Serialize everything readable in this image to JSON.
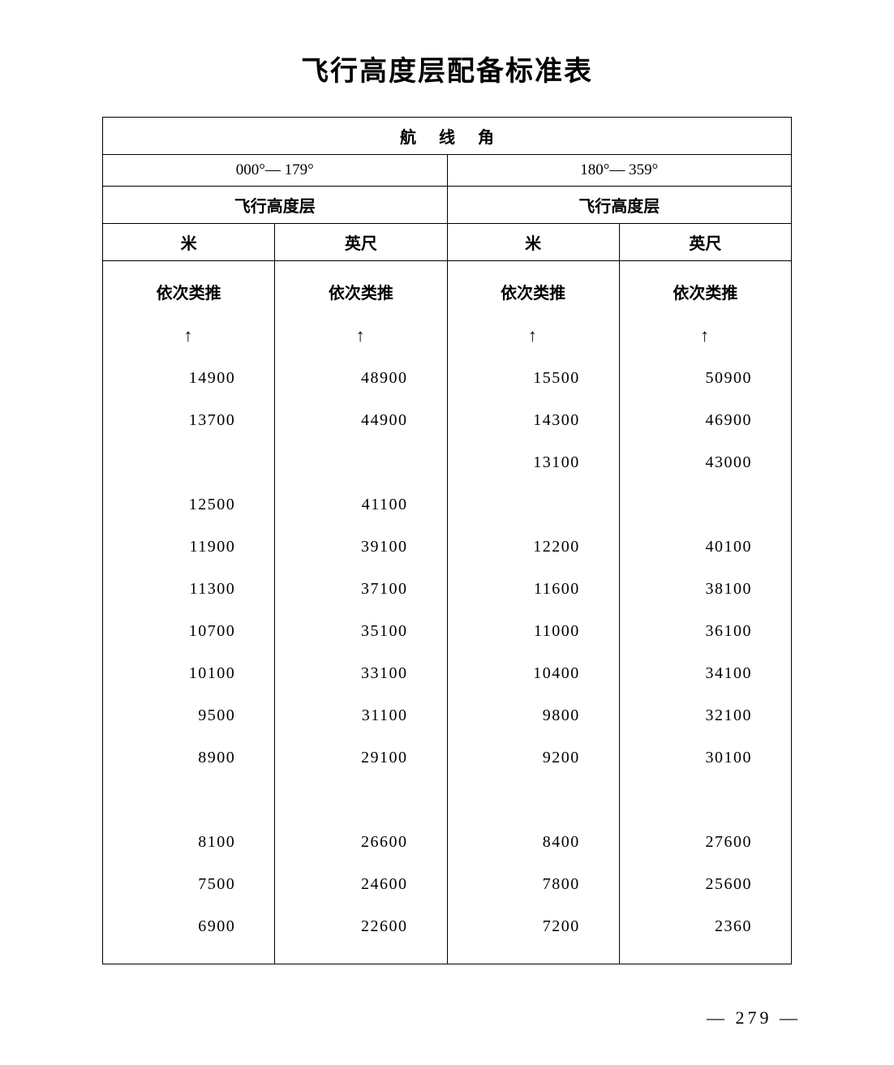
{
  "title": "飞行高度层配备标准表",
  "header": {
    "row1": "航线角",
    "row2_left": "000°— 179°",
    "row2_right": "180°— 359°",
    "row3_left": "飞行高度层",
    "row3_right": "飞行高度层",
    "row4_c1": "米",
    "row4_c2": "英尺",
    "row4_c3": "米",
    "row4_c4": "英尺"
  },
  "common": {
    "etc_label": "依次类推",
    "arrow": "↑"
  },
  "columns": [
    {
      "cells": [
        {
          "type": "bold",
          "key": "etc_label"
        },
        {
          "type": "arrow",
          "key": "arrow"
        },
        {
          "type": "num",
          "val": "14900"
        },
        {
          "type": "num",
          "val": "13700"
        },
        {
          "type": "gap"
        },
        {
          "type": "num",
          "val": "12500"
        },
        {
          "type": "num",
          "val": "11900"
        },
        {
          "type": "num",
          "val": "11300"
        },
        {
          "type": "num",
          "val": "10700"
        },
        {
          "type": "num",
          "val": "10100"
        },
        {
          "type": "num",
          "val": "9500"
        },
        {
          "type": "num",
          "val": "8900"
        },
        {
          "type": "gap"
        },
        {
          "type": "num",
          "val": "8100"
        },
        {
          "type": "num",
          "val": "7500"
        },
        {
          "type": "num",
          "val": "6900"
        }
      ]
    },
    {
      "cells": [
        {
          "type": "bold",
          "key": "etc_label"
        },
        {
          "type": "arrow",
          "key": "arrow"
        },
        {
          "type": "num",
          "val": "48900"
        },
        {
          "type": "num",
          "val": "44900"
        },
        {
          "type": "gap"
        },
        {
          "type": "num",
          "val": "41100"
        },
        {
          "type": "num",
          "val": "39100"
        },
        {
          "type": "num",
          "val": "37100"
        },
        {
          "type": "num",
          "val": "35100"
        },
        {
          "type": "num",
          "val": "33100"
        },
        {
          "type": "num",
          "val": "31100"
        },
        {
          "type": "num",
          "val": "29100"
        },
        {
          "type": "gap"
        },
        {
          "type": "num",
          "val": "26600"
        },
        {
          "type": "num",
          "val": "24600"
        },
        {
          "type": "num",
          "val": "22600"
        }
      ]
    },
    {
      "cells": [
        {
          "type": "bold",
          "key": "etc_label"
        },
        {
          "type": "arrow",
          "key": "arrow"
        },
        {
          "type": "num",
          "val": "15500"
        },
        {
          "type": "num",
          "val": "14300"
        },
        {
          "type": "num",
          "val": "13100"
        },
        {
          "type": "gap"
        },
        {
          "type": "num",
          "val": "12200"
        },
        {
          "type": "num",
          "val": "11600"
        },
        {
          "type": "num",
          "val": "11000"
        },
        {
          "type": "num",
          "val": "10400"
        },
        {
          "type": "num",
          "val": "9800"
        },
        {
          "type": "num",
          "val": "9200"
        },
        {
          "type": "gap"
        },
        {
          "type": "num",
          "val": "8400"
        },
        {
          "type": "num",
          "val": "7800"
        },
        {
          "type": "num",
          "val": "7200"
        }
      ]
    },
    {
      "cells": [
        {
          "type": "bold",
          "key": "etc_label"
        },
        {
          "type": "arrow",
          "key": "arrow"
        },
        {
          "type": "num",
          "val": "50900"
        },
        {
          "type": "num",
          "val": "46900"
        },
        {
          "type": "num",
          "val": "43000"
        },
        {
          "type": "gap"
        },
        {
          "type": "num",
          "val": "40100"
        },
        {
          "type": "num",
          "val": "38100"
        },
        {
          "type": "num",
          "val": "36100"
        },
        {
          "type": "num",
          "val": "34100"
        },
        {
          "type": "num",
          "val": "32100"
        },
        {
          "type": "num",
          "val": "30100"
        },
        {
          "type": "gap"
        },
        {
          "type": "num",
          "val": "27600"
        },
        {
          "type": "num",
          "val": "25600"
        },
        {
          "type": "num",
          "val": "2360"
        }
      ]
    }
  ],
  "page_number": "— 279 —"
}
